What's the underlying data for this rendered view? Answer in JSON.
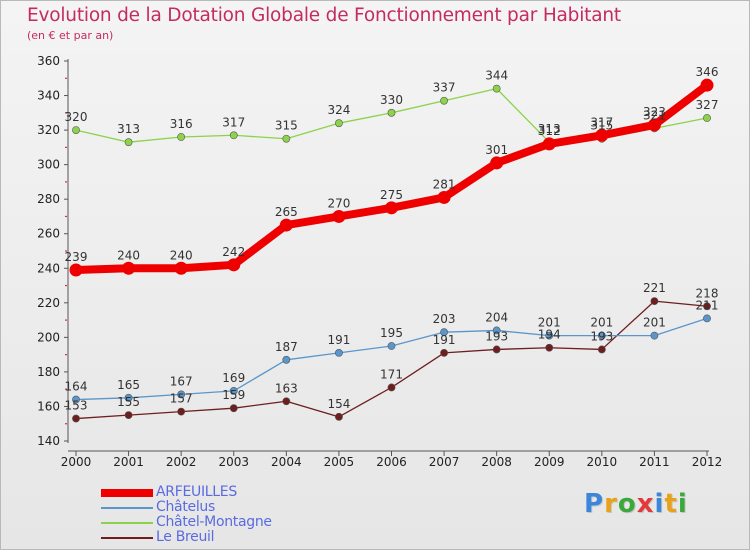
{
  "header": {
    "title": "Evolution de la Dotation Globale de Fonctionnement par Habitant",
    "subtitle": "(en € et par an)"
  },
  "logo": {
    "letters": [
      "P",
      "r",
      "o",
      "x",
      "i",
      "t",
      "i"
    ],
    "colors": [
      "#3b86d8",
      "#e8a21a",
      "#3aa83a",
      "#e23a3a",
      "#3b86d8",
      "#e8a21a",
      "#3aa83a"
    ]
  },
  "chart_data": {
    "type": "line",
    "x": [
      2000,
      2001,
      2002,
      2003,
      2004,
      2005,
      2006,
      2007,
      2008,
      2009,
      2010,
      2011,
      2012
    ],
    "ylim": [
      140,
      360
    ],
    "yticks": [
      140,
      160,
      180,
      200,
      220,
      240,
      260,
      280,
      300,
      320,
      340,
      360
    ],
    "grid": false,
    "legend_position": "bottom-left",
    "series": [
      {
        "name": "ARFEUILLES",
        "color": "#ee0000",
        "values": [
          239,
          240,
          240,
          242,
          265,
          270,
          275,
          281,
          301,
          312,
          317,
          323,
          346
        ],
        "labels": [
          "239",
          "240",
          "240",
          "242",
          "265",
          "270",
          "275",
          "281",
          "301",
          "312",
          "317",
          "323",
          "346"
        ]
      },
      {
        "name": "Châtelus",
        "color": "#5a96cc",
        "values": [
          164,
          165,
          167,
          169,
          187,
          191,
          195,
          203,
          204,
          201,
          201,
          201,
          211
        ],
        "labels": [
          "164",
          "165",
          "167",
          "169",
          "187",
          "191",
          "195",
          "203",
          "204",
          "201",
          "201",
          "201",
          "211"
        ]
      },
      {
        "name": "Châtel-Montagne",
        "color": "#8cd24a",
        "values": [
          320,
          313,
          316,
          317,
          315,
          324,
          330,
          337,
          344,
          313,
          315,
          321,
          327
        ],
        "labels": [
          "320",
          "313",
          "316",
          "317",
          "315",
          "324",
          "330",
          "337",
          "344",
          "313",
          "315",
          "321",
          "327"
        ]
      },
      {
        "name": "Le Breuil",
        "color": "#6e1e1e",
        "values": [
          153,
          155,
          157,
          159,
          163,
          154,
          171,
          191,
          193,
          194,
          193,
          221,
          218
        ],
        "labels": [
          "153",
          "155",
          "157",
          "159",
          "163",
          "154",
          "171",
          "191",
          "193",
          "194",
          "193",
          "221",
          "218"
        ]
      }
    ]
  }
}
